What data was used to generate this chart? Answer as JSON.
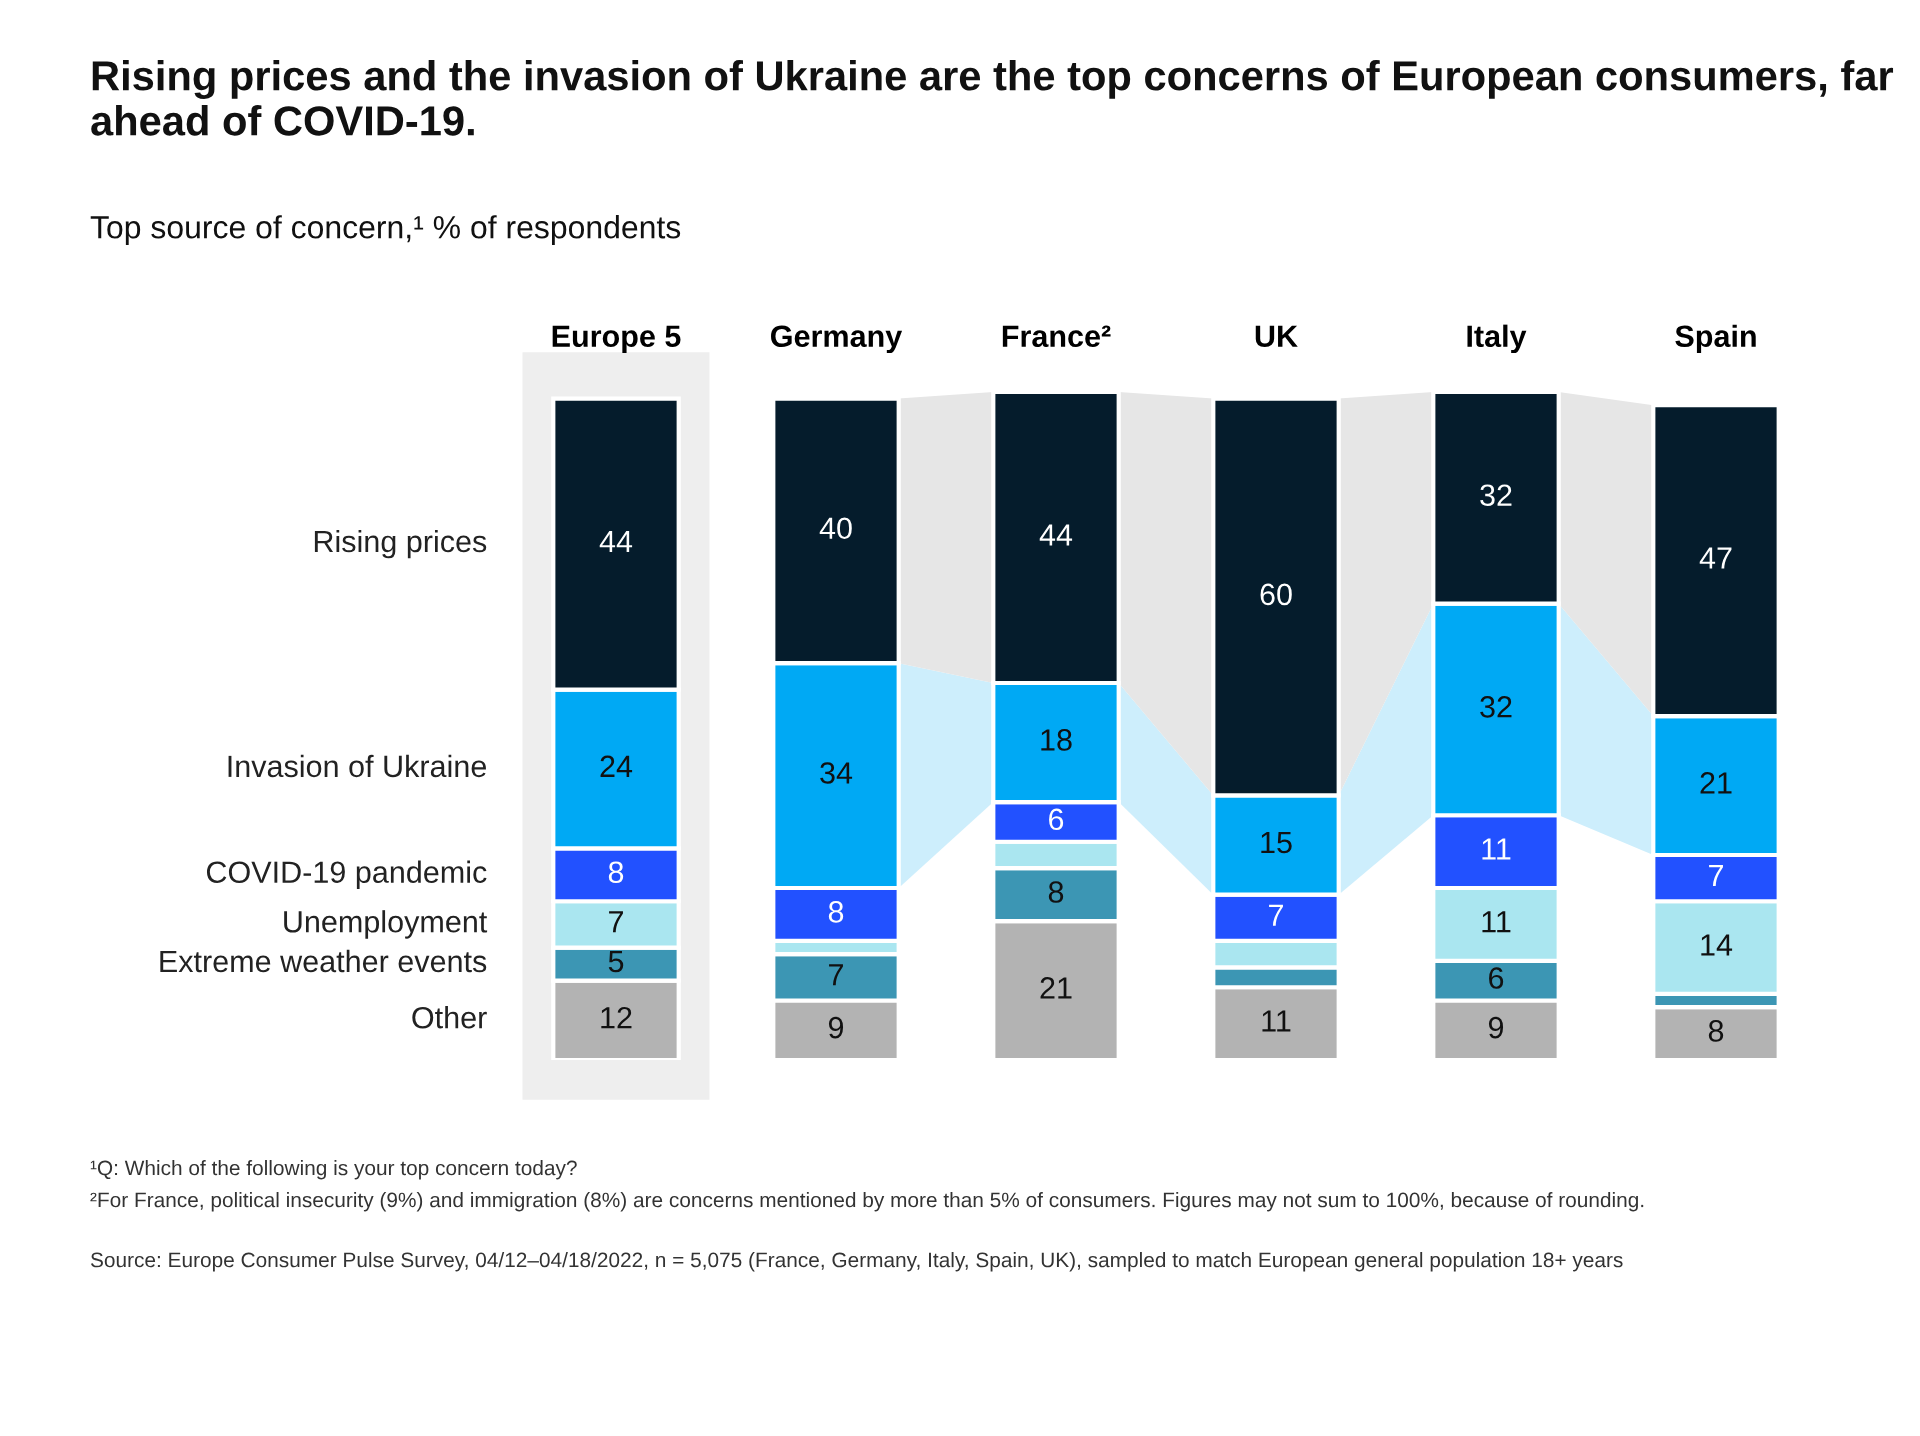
{
  "chart_data": {
    "type": "bar",
    "stacked": true,
    "title": "Rising prices and the invasion of Ukraine are the top concerns of European consumers, far ahead of COVID-19.",
    "subtitle": "Top source of concern,¹ % of respondents",
    "categories": [
      "Europe 5",
      "Germany",
      "France²",
      "UK",
      "Italy",
      "Spain"
    ],
    "series": [
      {
        "name": "Other",
        "color": "#b3b3b3",
        "values": [
          12,
          9,
          21,
          11,
          9,
          8
        ],
        "value_labels": [
          "12",
          "9",
          "21",
          "11",
          "9",
          "8"
        ]
      },
      {
        "name": "Extreme weather events",
        "color": "#3c96b4",
        "values": [
          5,
          7,
          8,
          3,
          6,
          2
        ],
        "value_labels": [
          "5",
          "7",
          "8",
          null,
          "6",
          null
        ]
      },
      {
        "name": "Unemployment",
        "color": "#aae6f0",
        "values": [
          7,
          2,
          4,
          4,
          11,
          14
        ],
        "value_labels": [
          "7",
          null,
          null,
          null,
          "11",
          "14"
        ]
      },
      {
        "name": "COVID-19 pandemic",
        "color": "#2251ff",
        "values": [
          8,
          8,
          6,
          7,
          11,
          7
        ],
        "value_labels": [
          "8",
          "8",
          "6",
          "7",
          "11",
          "7"
        ]
      },
      {
        "name": "Invasion of Ukraine",
        "color": "#00a9f4",
        "values": [
          24,
          34,
          18,
          15,
          32,
          21
        ],
        "value_labels": [
          "24",
          "34",
          "18",
          "15",
          "32",
          "21"
        ]
      },
      {
        "name": "Rising prices",
        "color": "#051c2c",
        "values": [
          44,
          40,
          44,
          60,
          32,
          47
        ],
        "value_labels": [
          "44",
          "40",
          "44",
          "60",
          "32",
          "47"
        ]
      }
    ],
    "bands": [
      {
        "axis": "x",
        "from": "Europe 5",
        "to": "Europe 5",
        "color": "#eeeeee"
      }
    ],
    "ylim": [
      0,
      101
    ],
    "tick_labels": "x",
    "grid": false,
    "legend": false,
    "annotations": [
      "¹Q: Which of the following is your top concern today?",
      "²For France, political insecurity (9%) and immigration (8%) are concerns mentioned by more than 5% of consumers. Figures may not sum to 100%, because of rounding.",
      "Source: Europe Consumer Pulse Survey, 04/12–04/18/2022, n = 5,075 (France, Germany, Italy, Spain, UK), sampled to match European general population 18+ years"
    ]
  }
}
